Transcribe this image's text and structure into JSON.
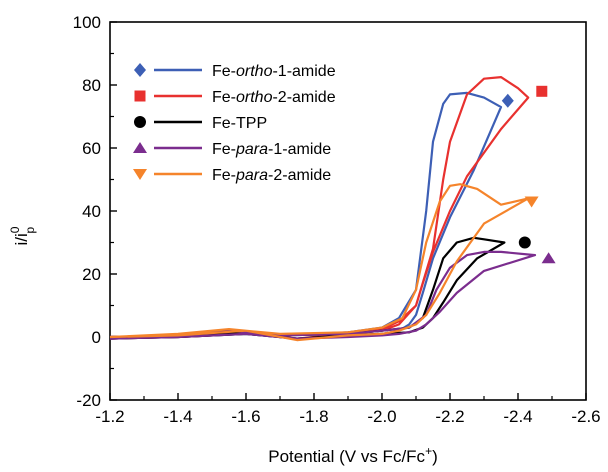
{
  "chart_data": {
    "type": "line",
    "xlabel": {
      "main": "Potential (V vs Fc/Fc",
      "sup": "+",
      "close": ")"
    },
    "ylabel": {
      "main": "i/i",
      "sub": "p",
      "sup": "0"
    },
    "xlim": [
      -1.2,
      -2.6
    ],
    "ylim": [
      -20,
      100
    ],
    "xticks": [
      -1.2,
      -1.4,
      -1.6,
      -1.8,
      -2.0,
      -2.2,
      -2.4,
      -2.6
    ],
    "xtick_labels": [
      "-1.2",
      "-1.4",
      "-1.6",
      "-1.8",
      "-2.0",
      "-2.2",
      "-2.4",
      "-2.6"
    ],
    "yticks": [
      -20,
      0,
      20,
      40,
      60,
      80,
      100
    ],
    "ytick_labels": [
      "-20",
      "0",
      "20",
      "40",
      "60",
      "80",
      "100"
    ],
    "grid": false,
    "legend_position": "top-left",
    "series": [
      {
        "name_parts": [
          "Fe-",
          "ortho",
          "-1-amide"
        ],
        "color": "#3d5fb5",
        "marker": "diamond",
        "marker_point": [
          -2.37,
          75
        ],
        "x": [
          -1.2,
          -1.4,
          -1.55,
          -1.7,
          -1.9,
          -2.0,
          -2.05,
          -2.1,
          -2.13,
          -2.15,
          -2.18,
          -2.2,
          -2.25,
          -2.3,
          -2.35,
          -2.27,
          -2.2,
          -2.15,
          -2.12,
          -2.1,
          -2.08,
          -2.05,
          -2.0,
          -1.9,
          -1.75,
          -1.6,
          -1.5,
          -1.4,
          -1.2
        ],
        "y": [
          0,
          0.5,
          1.5,
          0.5,
          1.5,
          3,
          6,
          15,
          40,
          62,
          74,
          77,
          77.5,
          76,
          73,
          53,
          38,
          25,
          14,
          7,
          4,
          2,
          1,
          0.5,
          -0.5,
          1,
          0.5,
          0,
          -0.5
        ]
      },
      {
        "name_parts": [
          "Fe-",
          "ortho",
          "-2-amide"
        ],
        "color": "#e8312f",
        "marker": "square",
        "marker_point": [
          -2.47,
          78
        ],
        "x": [
          -1.2,
          -1.4,
          -1.55,
          -1.7,
          -1.9,
          -2.0,
          -2.05,
          -2.1,
          -2.15,
          -2.18,
          -2.2,
          -2.25,
          -2.3,
          -2.35,
          -2.4,
          -2.43,
          -2.35,
          -2.25,
          -2.2,
          -2.15,
          -2.12,
          -2.1,
          -2.05,
          -2.0,
          -1.9,
          -1.75,
          -1.6,
          -1.5,
          -1.4,
          -1.2
        ],
        "y": [
          0,
          0.5,
          2,
          0.5,
          1.5,
          2.5,
          5,
          10,
          28,
          50,
          62,
          77,
          82,
          82.5,
          79,
          76,
          66,
          51,
          40,
          27,
          17,
          10,
          4,
          2,
          1,
          -0.5,
          1.5,
          0.5,
          0,
          -0.5
        ]
      },
      {
        "name_parts": [
          "Fe-TPP"
        ],
        "color": "#000000",
        "marker": "circle",
        "marker_point": [
          -2.42,
          30
        ],
        "x": [
          -1.2,
          -1.4,
          -1.55,
          -1.7,
          -1.9,
          -2.0,
          -2.08,
          -2.12,
          -2.15,
          -2.18,
          -2.22,
          -2.27,
          -2.3,
          -2.36,
          -2.28,
          -2.22,
          -2.18,
          -2.15,
          -2.12,
          -2.08,
          -2.0,
          -1.9,
          -1.75,
          -1.6,
          -1.4,
          -1.2
        ],
        "y": [
          0,
          0.5,
          1.5,
          0.5,
          1,
          2,
          3,
          6,
          15,
          25,
          30,
          31.5,
          31,
          30,
          25,
          18,
          11,
          6,
          3,
          1.5,
          1,
          0.5,
          -0.5,
          1,
          0,
          -0.5
        ]
      },
      {
        "name_parts": [
          "Fe-",
          "para",
          "-1-amide"
        ],
        "color": "#7b2d8e",
        "marker": "triangle-up",
        "marker_point": [
          -2.49,
          25
        ],
        "x": [
          -1.2,
          -1.4,
          -1.55,
          -1.7,
          -1.9,
          -2.0,
          -2.08,
          -2.13,
          -2.16,
          -2.2,
          -2.25,
          -2.3,
          -2.35,
          -2.45,
          -2.3,
          -2.22,
          -2.17,
          -2.13,
          -2.1,
          -2.05,
          -2.0,
          -1.9,
          -1.75,
          -1.6,
          -1.4,
          -1.2
        ],
        "y": [
          0,
          0.5,
          2,
          0.5,
          1,
          2,
          3,
          7,
          15,
          22,
          26,
          27,
          27,
          26,
          21,
          14,
          8,
          4,
          2,
          1,
          0.5,
          0,
          -0.5,
          1,
          0,
          -0.5
        ]
      },
      {
        "name_parts": [
          "Fe-",
          "para",
          "-2-amide"
        ],
        "color": "#f5842b",
        "marker": "triangle-down",
        "marker_point": [
          -2.44,
          43
        ],
        "x": [
          -1.2,
          -1.4,
          -1.55,
          -1.7,
          -1.9,
          -2.0,
          -2.06,
          -2.1,
          -2.13,
          -2.17,
          -2.2,
          -2.23,
          -2.28,
          -2.35,
          -2.43,
          -2.3,
          -2.22,
          -2.17,
          -2.13,
          -2.1,
          -2.05,
          -2.0,
          -1.9,
          -1.75,
          -1.6,
          -1.4,
          -1.2
        ],
        "y": [
          0,
          1,
          2.5,
          1,
          1.5,
          3,
          6,
          15,
          30,
          43,
          48,
          48.5,
          47,
          42,
          44,
          36,
          24,
          14,
          7,
          4,
          2,
          1,
          0.5,
          -1,
          2,
          0.5,
          0
        ]
      }
    ]
  }
}
